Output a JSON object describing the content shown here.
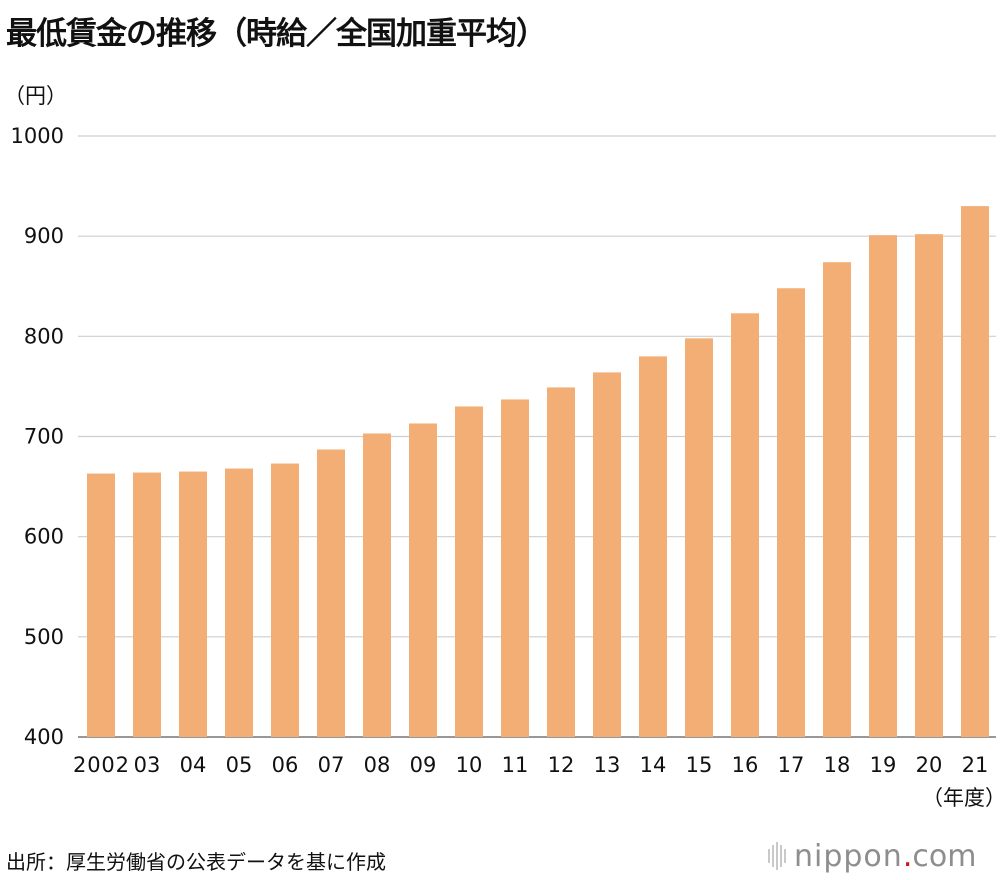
{
  "chart_data": {
    "type": "bar",
    "title": "最低賃金の推移（時給／全国加重平均）",
    "ylabel": "（円）",
    "xlabel": "（年度）",
    "categories": [
      "2002",
      "03",
      "04",
      "05",
      "06",
      "07",
      "08",
      "09",
      "10",
      "11",
      "12",
      "13",
      "14",
      "15",
      "16",
      "17",
      "18",
      "19",
      "20",
      "21"
    ],
    "values": [
      663,
      664,
      665,
      668,
      673,
      687,
      703,
      713,
      730,
      737,
      749,
      764,
      780,
      798,
      823,
      848,
      874,
      901,
      902,
      930
    ],
    "ylim": [
      400,
      1000
    ],
    "yticks": [
      400,
      500,
      600,
      700,
      800,
      900,
      1000
    ],
    "grid": true,
    "colors": {
      "bar": "#F2AE74",
      "grid": "#cfcfcf"
    }
  },
  "footer": {
    "source": "出所：厚生労働省の公表データを基に作成",
    "brand_name": "nippon",
    "brand_dot": ".",
    "brand_tld": "com"
  }
}
